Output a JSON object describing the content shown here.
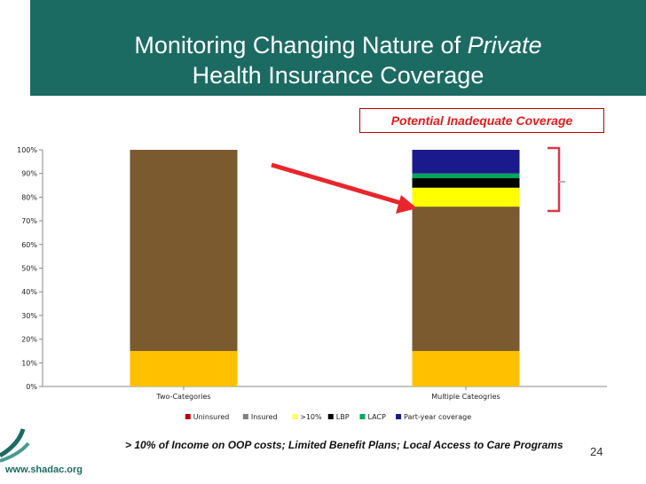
{
  "slide": {
    "title_line1_prefix": "Monitoring Changing Nature of ",
    "title_line1_emph": "Private",
    "title_line2": "Health Insurance Coverage",
    "callout": "Potential Inadequate Coverage",
    "footnote": "> 10% of Income on OOP costs; Limited Benefit Plans; Local Access to Care Programs",
    "page_number": "24",
    "footer_url": "www.shadac.org"
  },
  "colors": {
    "title_band": "#1b6b63",
    "callout_text": "#e21c1c",
    "arrow": "#e8262b"
  },
  "chart_data": {
    "type": "bar",
    "stacked": true,
    "categories": [
      "Two-Categories",
      "Multiple Cateogries"
    ],
    "ylim": [
      0,
      100
    ],
    "yticks": [
      "0%",
      "10%",
      "20%",
      "30%",
      "40%",
      "50%",
      "60%",
      "70%",
      "80%",
      "90%",
      "100%"
    ],
    "grid": false,
    "legend_position": "bottom",
    "series": [
      {
        "name": "Uninsured",
        "color": "#ffc000",
        "values": [
          15,
          15
        ]
      },
      {
        "name": "Insured",
        "color": "#7a5a2e",
        "values": [
          85,
          61
        ]
      },
      {
        "name": ">10%",
        "color": "#ffff00",
        "values": [
          0,
          8
        ]
      },
      {
        "name": "LBP",
        "color": "#000000",
        "values": [
          0,
          4
        ]
      },
      {
        "name": "LACP",
        "color": "#00a65a",
        "values": [
          0,
          2
        ]
      },
      {
        "name": "Part-year coverage",
        "color": "#1a1a8c",
        "values": [
          0,
          10
        ]
      }
    ],
    "legend": [
      {
        "name": "Uninsured",
        "color": "#c00000"
      },
      {
        "name": "Insured",
        "color": "#808080"
      },
      {
        "name": ">10%",
        "color": "#ffff66"
      },
      {
        "name": "LBP",
        "color": "#000000"
      },
      {
        "name": "LACP",
        "color": "#00a65a"
      },
      {
        "name": "Part-year coverage",
        "color": "#1a1a8c"
      }
    ]
  }
}
